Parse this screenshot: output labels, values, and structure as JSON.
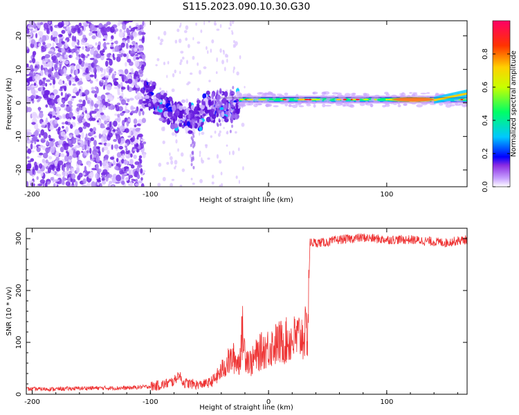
{
  "page_title": "S115.2023.090.10.30.G30",
  "chart_data": [
    {
      "type": "heatmap",
      "xlabel": "Height of straight line (km)",
      "ylabel": "Frequency (Hz)",
      "xlim": [
        -205,
        168
      ],
      "ylim": [
        -25,
        24.5
      ],
      "x_ticks": [
        -200,
        -100,
        0,
        100
      ],
      "y_ticks": [
        -20,
        -10,
        0,
        10,
        20
      ],
      "colorbar": {
        "label": "Normalized spectral amplitude",
        "range": [
          0,
          1
        ],
        "ticks": [
          0.0,
          0.2,
          0.4,
          0.6,
          0.8
        ],
        "tick_labels": [
          "0.0",
          "0.2",
          "0.4",
          "0.6",
          "0.8"
        ],
        "colormap": [
          "#ffffff",
          "#c8a2ff",
          "#8a2be2",
          "#4b00d1",
          "#0000ff",
          "#00c8ff",
          "#00ff66",
          "#c8ff00",
          "#ffd000",
          "#ff3300",
          "#ff0066"
        ]
      },
      "features": {
        "noise_region_x": [
          -205,
          -105
        ],
        "transition_x": [
          -105,
          -25
        ],
        "signal_line_x": [
          -25,
          168
        ],
        "signal_frequency_hz": 1.0,
        "peak_amplitude_x": [
          105,
          140
        ],
        "line_upturn": {
          "x": [
            140,
            168
          ],
          "frequency_hz": [
            0.8,
            2.8
          ]
        }
      }
    },
    {
      "type": "line",
      "xlabel": "Height of straight line (km)",
      "ylabel": "SNR (10 * v/v)",
      "xlim": [
        -205,
        168
      ],
      "ylim": [
        0,
        320
      ],
      "x_ticks": [
        -200,
        -100,
        0,
        100
      ],
      "y_ticks": [
        0,
        100,
        200,
        300
      ],
      "color": "#ee3333",
      "series": [
        {
          "x": [
            -205,
            -180,
            -150,
            -120,
            -100,
            -90,
            -80,
            -76,
            -72,
            -65,
            -60,
            -55,
            -50,
            -45,
            -40,
            -35,
            -30,
            -25,
            -22,
            -20,
            -15,
            -10,
            -5,
            0,
            10,
            20,
            30,
            33,
            34,
            35,
            40,
            50,
            60,
            70,
            80,
            90,
            100,
            110,
            120,
            130,
            140,
            150,
            160,
            168
          ],
          "y": [
            10,
            10,
            12,
            12,
            15,
            18,
            25,
            38,
            22,
            20,
            18,
            20,
            22,
            30,
            45,
            60,
            70,
            60,
            120,
            80,
            60,
            75,
            85,
            90,
            100,
            105,
            115,
            120,
            200,
            292,
            292,
            293,
            298,
            300,
            302,
            300,
            298,
            298,
            298,
            296,
            294,
            292,
            296,
            298
          ]
        }
      ]
    }
  ]
}
